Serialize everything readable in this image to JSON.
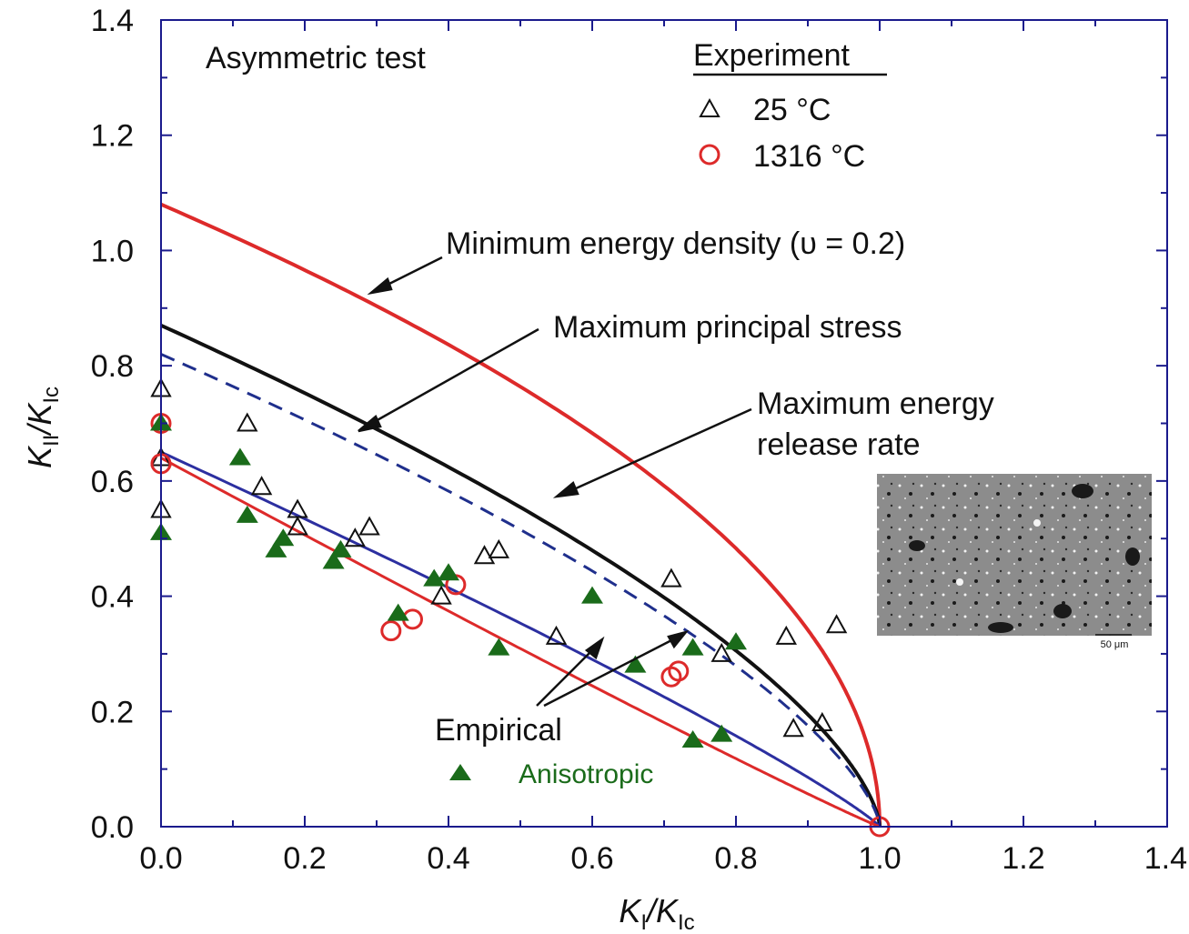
{
  "chart_data": {
    "type": "scatter",
    "title": "",
    "xlabel": {
      "main": "K",
      "sub": "I",
      "denom_main": "/K",
      "denom_sub": "Ic"
    },
    "ylabel": {
      "main": "K",
      "sub": "II",
      "denom_main": "/K",
      "denom_sub": "Ic"
    },
    "xlim": [
      0,
      1.4
    ],
    "ylim": [
      0,
      1.4
    ],
    "xticks": [
      "0.0",
      "0.2",
      "0.4",
      "0.6",
      "0.8",
      "1.0",
      "1.2",
      "1.4"
    ],
    "yticks": [
      "0.0",
      "0.2",
      "0.4",
      "0.6",
      "0.8",
      "1.0",
      "1.2",
      "1.4"
    ],
    "grid": false,
    "annotations": {
      "test_type": "Asymmetric test",
      "legend_title": "Experiment",
      "min_energy_density": "Minimum energy density (υ = 0.2)",
      "max_principal_stress": "Maximum principal stress",
      "max_energy_release_line1": "Maximum energy",
      "max_energy_release_line2": "release rate",
      "empirical": "Empirical",
      "anisotropic": "Anisotropic",
      "scale_bar": "50 μm"
    },
    "colors": {
      "min_energy_density": "#dd2a2a",
      "max_principal_stress": "#111111",
      "max_energy_release": "#1f2f8c",
      "empirical_upper": "#2c2fa0",
      "empirical_lower": "#dd2a2a",
      "frame": "#1a1a8c",
      "anisotropic": "#1a6b1a"
    },
    "curves": [
      {
        "id": "min_energy_density",
        "y0": 1.08,
        "power": 0.5
      },
      {
        "id": "max_principal_stress",
        "y0": 0.87,
        "power": 0.65
      },
      {
        "id": "max_energy_release",
        "y0": 0.82,
        "power": 0.67,
        "dashed": true
      },
      {
        "id": "empirical_upper",
        "y0": 0.65,
        "power": 0.88
      },
      {
        "id": "empirical_lower",
        "y0": 0.64,
        "power": 1.05
      }
    ],
    "series": [
      {
        "name": "25 °C",
        "marker": "triangle-open",
        "color": "#111111",
        "points": [
          [
            0.0,
            0.76
          ],
          [
            0.0,
            0.64
          ],
          [
            0.0,
            0.55
          ],
          [
            0.12,
            0.7
          ],
          [
            0.14,
            0.59
          ],
          [
            0.19,
            0.52
          ],
          [
            0.19,
            0.55
          ],
          [
            0.27,
            0.5
          ],
          [
            0.29,
            0.52
          ],
          [
            0.39,
            0.4
          ],
          [
            0.45,
            0.47
          ],
          [
            0.47,
            0.48
          ],
          [
            0.55,
            0.33
          ],
          [
            0.71,
            0.43
          ],
          [
            0.78,
            0.3
          ],
          [
            0.87,
            0.33
          ],
          [
            0.88,
            0.17
          ],
          [
            0.92,
            0.18
          ],
          [
            0.94,
            0.35
          ]
        ]
      },
      {
        "name": "1316 °C",
        "marker": "circle-open",
        "color": "#dd2a2a",
        "points": [
          [
            0.0,
            0.7
          ],
          [
            0.0,
            0.63
          ],
          [
            0.32,
            0.34
          ],
          [
            0.35,
            0.36
          ],
          [
            0.41,
            0.42
          ],
          [
            0.71,
            0.26
          ],
          [
            0.72,
            0.27
          ],
          [
            1.0,
            0.0
          ]
        ]
      },
      {
        "name": "Anisotropic",
        "marker": "triangle-filled",
        "color": "#1a6b1a",
        "points": [
          [
            0.0,
            0.7
          ],
          [
            0.0,
            0.51
          ],
          [
            0.11,
            0.64
          ],
          [
            0.12,
            0.54
          ],
          [
            0.16,
            0.48
          ],
          [
            0.17,
            0.5
          ],
          [
            0.24,
            0.46
          ],
          [
            0.25,
            0.48
          ],
          [
            0.38,
            0.43
          ],
          [
            0.4,
            0.44
          ],
          [
            0.33,
            0.37
          ],
          [
            0.47,
            0.31
          ],
          [
            0.6,
            0.4
          ],
          [
            0.66,
            0.28
          ],
          [
            0.74,
            0.31
          ],
          [
            0.8,
            0.32
          ],
          [
            0.74,
            0.15
          ],
          [
            0.78,
            0.16
          ]
        ]
      }
    ]
  }
}
